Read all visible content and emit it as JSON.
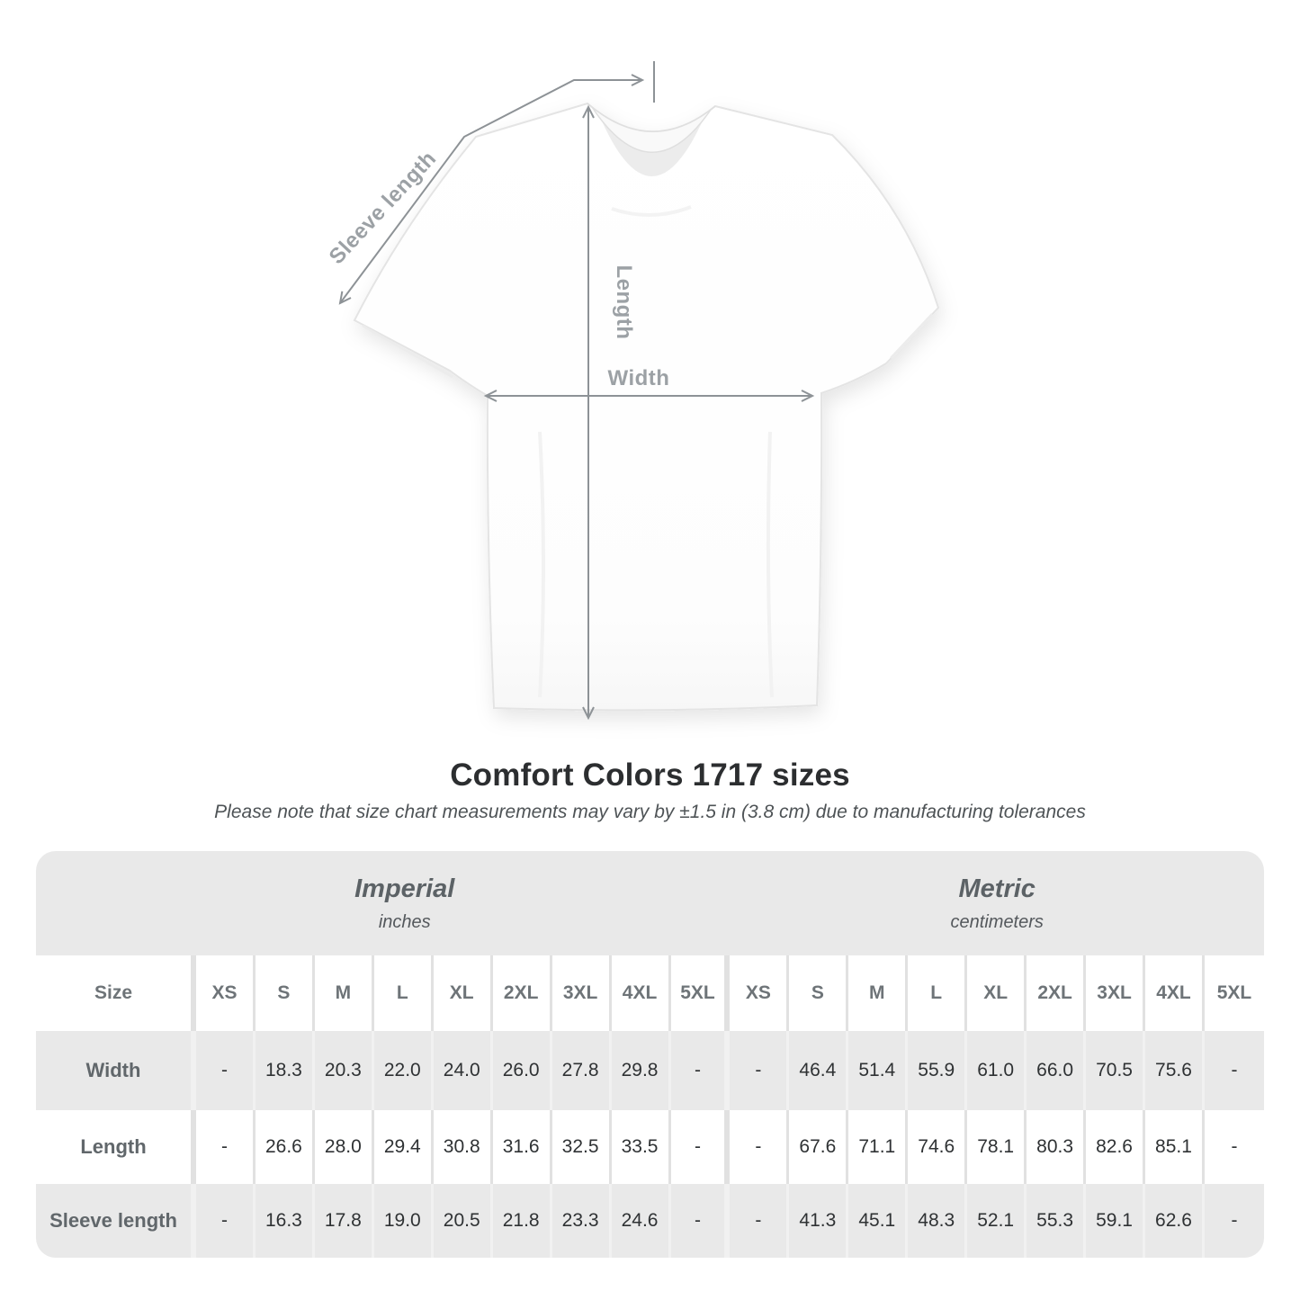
{
  "diagram": {
    "labels": {
      "sleeve_length": "Sleeve length",
      "length": "Length",
      "width": "Width"
    }
  },
  "heading": {
    "title": "Comfort Colors 1717 sizes",
    "note": "Please note that size chart measurements may vary by ±1.5 in (3.8 cm) due to manufacturing tolerances"
  },
  "chart_data": {
    "type": "table",
    "title": "Comfort Colors 1717 sizes",
    "note": "Please note that size chart measurements may vary by ±1.5 in (3.8 cm) due to manufacturing tolerances",
    "size_label": "Size",
    "unit_groups": [
      {
        "label": "Imperial",
        "unit": "inches",
        "sizes": [
          "XS",
          "S",
          "M",
          "L",
          "XL",
          "2XL",
          "3XL",
          "4XL",
          "5XL"
        ]
      },
      {
        "label": "Metric",
        "unit": "centimeters",
        "sizes": [
          "XS",
          "S",
          "M",
          "L",
          "XL",
          "2XL",
          "3XL",
          "4XL",
          "5XL"
        ]
      }
    ],
    "rows": [
      {
        "label": "Width",
        "imperial": [
          "-",
          "18.3",
          "20.3",
          "22.0",
          "24.0",
          "26.0",
          "27.8",
          "29.8",
          "-"
        ],
        "metric": [
          "-",
          "46.4",
          "51.4",
          "55.9",
          "61.0",
          "66.0",
          "70.5",
          "75.6",
          "-"
        ]
      },
      {
        "label": "Length",
        "imperial": [
          "-",
          "26.6",
          "28.0",
          "29.4",
          "30.8",
          "31.6",
          "32.5",
          "33.5",
          "-"
        ],
        "metric": [
          "-",
          "67.6",
          "71.1",
          "74.6",
          "78.1",
          "80.3",
          "82.6",
          "85.1",
          "-"
        ]
      },
      {
        "label": "Sleeve length",
        "imperial": [
          "-",
          "16.3",
          "17.8",
          "19.0",
          "20.5",
          "21.8",
          "23.3",
          "24.6",
          "-"
        ],
        "metric": [
          "-",
          "41.3",
          "45.1",
          "48.3",
          "52.1",
          "55.3",
          "59.1",
          "62.6",
          "-"
        ]
      }
    ]
  },
  "colors": {
    "band_gray": "#e9e9e9",
    "separator_on_white": "#e1e1e1",
    "separator_on_gray": "#f1f1f1",
    "dimension_line": "#8d9296",
    "dimension_label": "#9ca1a5",
    "title_text": "#2c2e30",
    "value_text": "#2f3234"
  }
}
